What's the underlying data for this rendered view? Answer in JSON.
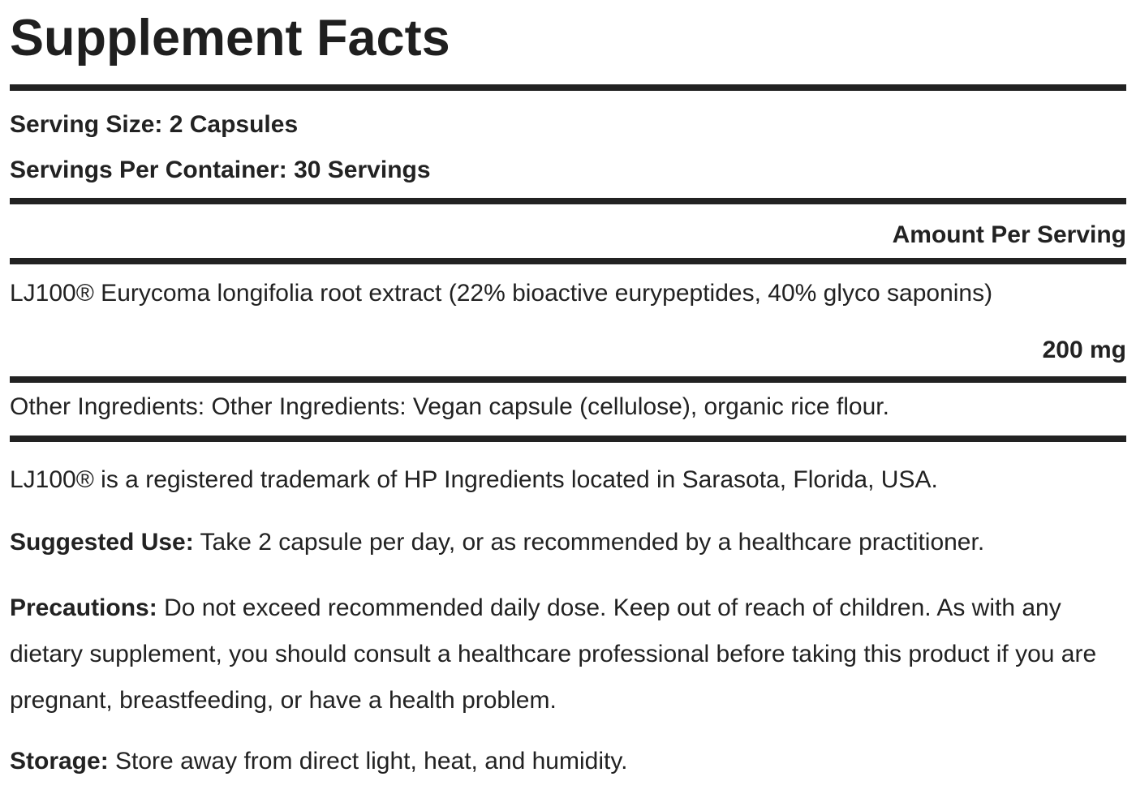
{
  "label": {
    "title": "Supplement Facts",
    "serving_size_line": "Serving Size: 2 Capsules",
    "servings_per_container_line": "Servings Per Container: 30 Servings",
    "amount_per_serving_header": "Amount Per Serving",
    "ingredient": {
      "name": "LJ100® Eurycoma longifolia root extract (22% bioactive eurypeptides, 40% glyco saponins)",
      "amount": "200 mg"
    },
    "other_ingredients_line": "Other Ingredients: Other Ingredients: Vegan capsule (cellulose), organic rice flour.",
    "trademark_note": "LJ100® is a registered trademark of HP Ingredients located in Sarasota, Florida, USA.",
    "suggested_use": {
      "label": "Suggested Use:",
      "text": "Take 2 capsule per day, or as recommended by a healthcare practitioner."
    },
    "precautions": {
      "label": "Precautions:",
      "text": "Do not exceed recommended daily dose. Keep out of reach of children. As with any dietary supplement, you should consult a healthcare professional before taking this product if you are pregnant, breastfeeding, or have a health problem."
    },
    "storage": {
      "label": "Storage:",
      "text": "Store away from direct light, heat, and humidity."
    },
    "colors": {
      "text": "#222222",
      "rule": "#222222",
      "background": "#ffffff"
    }
  }
}
